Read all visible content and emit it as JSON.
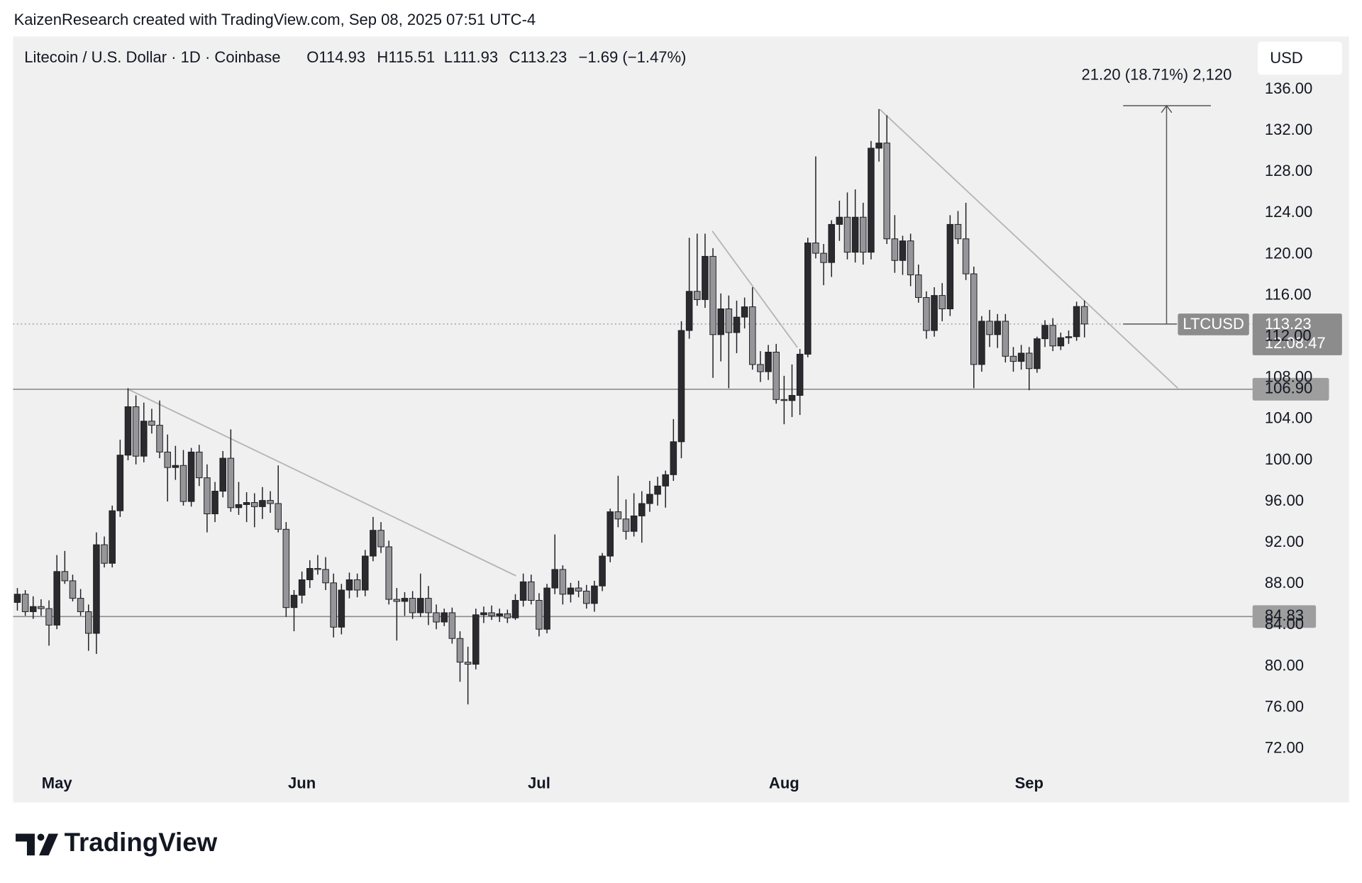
{
  "chart_data": {
    "type": "candlestick",
    "credit": "KaizenResearch created with TradingView.com, Sep 08, 2025 07:51 UTC-4",
    "title": "Litecoin / U.S. Dollar · 1D · Coinbase",
    "ohlc_labels": [
      "O114.93",
      "H115.51",
      "L111.93",
      "C113.23",
      "−1.69 (−1.47%)"
    ],
    "currency": "USD",
    "symbol_label": "LTCUSD",
    "countdown": "12:08:47",
    "up_color": "#2b2b2f",
    "down_color": "#96969a",
    "categories": [
      null,
      null,
      null,
      null,
      null,
      "May",
      null,
      null,
      null,
      null,
      null,
      null,
      null,
      null,
      null,
      null,
      null,
      null,
      null,
      null,
      null,
      null,
      null,
      null,
      null,
      null,
      null,
      null,
      null,
      null,
      null,
      null,
      null,
      null,
      null,
      null,
      "Jun",
      null,
      null,
      null,
      null,
      null,
      null,
      null,
      null,
      null,
      null,
      null,
      null,
      null,
      null,
      null,
      null,
      null,
      null,
      null,
      null,
      null,
      null,
      null,
      null,
      null,
      null,
      null,
      null,
      null,
      "Jul",
      null,
      null,
      null,
      null,
      null,
      null,
      null,
      null,
      null,
      null,
      null,
      null,
      null,
      null,
      null,
      null,
      null,
      null,
      null,
      null,
      null,
      null,
      null,
      null,
      null,
      null,
      null,
      null,
      null,
      null,
      "Aug",
      null,
      null,
      null,
      null,
      null,
      null,
      null,
      null,
      null,
      null,
      null,
      null,
      null,
      null,
      null,
      null,
      null,
      null,
      null,
      null,
      null,
      null,
      null,
      null,
      null,
      null,
      null,
      null,
      null,
      null,
      "Sep",
      null,
      null,
      null,
      null,
      null,
      null,
      null
    ],
    "open": [
      86.2,
      87.0,
      85.3,
      85.8,
      85.6,
      84.0,
      89.2,
      88.3,
      86.6,
      85.3,
      83.2,
      91.8,
      90.0,
      95.1,
      100.5,
      105.2,
      100.4,
      103.8,
      103.4,
      100.8,
      99.3,
      99.5,
      96.0,
      100.8,
      98.3,
      94.8,
      97.0,
      100.2,
      95.4,
      95.7,
      95.9,
      95.5,
      96.1,
      95.8,
      93.3,
      85.7,
      86.9,
      88.4,
      89.5,
      89.4,
      88.1,
      83.8,
      87.4,
      88.4,
      87.4,
      90.7,
      93.2,
      91.6,
      86.5,
      86.3,
      86.6,
      85.2,
      86.6,
      85.2,
      84.3,
      85.2,
      82.7,
      80.4,
      80.2,
      85.0,
      85.2,
      84.9,
      85.1,
      84.7,
      86.4,
      88.2,
      86.4,
      83.6,
      87.6,
      89.4,
      87.0,
      87.6,
      87.3,
      86.1,
      87.8,
      90.7,
      95.0,
      94.3,
      93.1,
      94.6,
      95.8,
      96.7,
      97.5,
      98.6,
      101.8,
      112.6,
      116.4,
      115.6,
      119.8,
      112.2,
      114.7,
      112.4,
      113.9,
      114.9,
      109.3,
      108.6,
      110.5,
      105.9,
      105.8,
      106.3,
      110.3,
      121.1,
      120.1,
      119.2,
      122.9,
      123.6,
      120.2,
      123.6,
      120.2,
      130.3,
      130.8,
      121.5,
      119.4,
      121.3,
      118.0,
      115.8,
      112.6,
      116.0,
      114.7,
      122.9,
      121.5,
      118.1,
      109.3,
      113.5,
      112.2,
      113.5,
      110.1,
      109.6,
      110.4,
      108.9,
      111.8,
      113.1,
      111.1,
      111.9,
      112.0,
      114.93
    ],
    "high": [
      87.6,
      87.4,
      86.8,
      86.5,
      86.4,
      90.8,
      91.2,
      88.9,
      87.5,
      86.0,
      93.0,
      92.6,
      95.6,
      102.0,
      107.0,
      106.3,
      105.6,
      105.0,
      105.8,
      102.5,
      101.4,
      101.0,
      101.2,
      101.5,
      99.6,
      97.9,
      100.9,
      103.0,
      97.9,
      96.9,
      96.8,
      97.4,
      97.0,
      99.5,
      94.0,
      87.4,
      89.2,
      90.3,
      90.8,
      90.6,
      89.0,
      88.0,
      89.1,
      89.0,
      91.3,
      94.5,
      94.0,
      92.2,
      87.6,
      87.2,
      87.3,
      89.0,
      87.8,
      86.0,
      85.6,
      85.7,
      83.4,
      81.9,
      85.6,
      85.8,
      85.9,
      85.6,
      85.5,
      87.0,
      89.0,
      88.9,
      87.1,
      88.0,
      92.8,
      89.8,
      88.1,
      88.3,
      87.9,
      88.3,
      91.0,
      95.3,
      98.5,
      96.2,
      96.8,
      97.0,
      98.0,
      98.4,
      99.0,
      104.0,
      113.5,
      121.6,
      122.0,
      122.0,
      120.6,
      116.2,
      116.0,
      115.5,
      115.8,
      116.8,
      110.6,
      111.2,
      111.3,
      108.2,
      109.3,
      110.8,
      121.6,
      129.5,
      121.0,
      123.3,
      125.2,
      126.0,
      126.3,
      125.0,
      131.0,
      134.1,
      133.5,
      123.8,
      121.8,
      122.0,
      119.0,
      116.4,
      116.8,
      117.2,
      123.8,
      124.2,
      125.0,
      118.8,
      114.0,
      114.6,
      114.2,
      114.2,
      111.0,
      111.2,
      111.0,
      112.0,
      113.6,
      113.8,
      112.4,
      112.6,
      115.4,
      115.51
    ],
    "low": [
      85.4,
      84.9,
      84.6,
      84.9,
      82.0,
      83.6,
      88.0,
      86.3,
      84.9,
      81.5,
      81.2,
      89.6,
      89.6,
      94.5,
      100.0,
      99.6,
      99.8,
      102.6,
      100.2,
      96.0,
      98.1,
      95.6,
      95.5,
      97.5,
      93.0,
      94.0,
      96.4,
      95.0,
      94.7,
      94.0,
      93.5,
      94.3,
      94.9,
      93.0,
      84.8,
      83.4,
      86.1,
      87.6,
      88.9,
      87.4,
      82.8,
      83.1,
      86.6,
      86.7,
      86.8,
      90.2,
      91.0,
      86.0,
      82.5,
      84.9,
      84.6,
      84.8,
      84.0,
      83.6,
      83.9,
      82.2,
      78.5,
      76.3,
      79.7,
      84.2,
      84.5,
      84.3,
      84.2,
      84.5,
      85.8,
      86.0,
      82.9,
      83.2,
      87.0,
      86.0,
      86.2,
      86.7,
      85.6,
      85.3,
      87.3,
      90.1,
      93.5,
      92.3,
      92.6,
      92.0,
      95.0,
      95.6,
      95.4,
      98.0,
      100.2,
      111.8,
      115.0,
      114.8,
      108.0,
      109.6,
      107.0,
      110.4,
      112.8,
      108.8,
      107.6,
      107.8,
      105.5,
      103.5,
      104.2,
      104.4,
      110.0,
      119.6,
      117.0,
      117.8,
      121.3,
      119.5,
      119.2,
      119.0,
      119.5,
      129.0,
      121.0,
      118.2,
      118.0,
      116.9,
      115.3,
      111.8,
      112.0,
      113.5,
      114.0,
      121.0,
      117.5,
      107.0,
      108.6,
      111.0,
      110.9,
      109.5,
      108.6,
      108.8,
      106.8,
      108.5,
      111.0,
      110.6,
      110.7,
      111.3,
      111.6,
      111.93
    ],
    "close": [
      87.0,
      85.3,
      85.8,
      85.6,
      84.0,
      89.2,
      88.3,
      86.6,
      85.3,
      83.2,
      91.8,
      90.0,
      95.1,
      100.5,
      105.2,
      100.4,
      103.8,
      103.4,
      100.8,
      99.3,
      99.5,
      96.0,
      100.8,
      98.3,
      94.8,
      97.0,
      100.2,
      95.4,
      95.7,
      95.9,
      95.5,
      96.1,
      95.8,
      93.3,
      85.7,
      86.9,
      88.4,
      89.5,
      89.4,
      88.1,
      83.8,
      87.4,
      88.4,
      87.4,
      90.7,
      93.2,
      91.6,
      86.5,
      86.3,
      86.6,
      85.2,
      86.6,
      85.2,
      84.3,
      85.2,
      82.7,
      80.4,
      80.2,
      85.0,
      85.2,
      84.9,
      85.1,
      84.7,
      86.4,
      88.2,
      86.4,
      83.6,
      87.6,
      89.4,
      87.0,
      87.6,
      87.3,
      86.1,
      87.8,
      90.7,
      95.0,
      94.3,
      93.1,
      94.6,
      95.8,
      96.7,
      97.5,
      98.6,
      101.8,
      112.6,
      116.4,
      115.6,
      119.8,
      112.2,
      114.7,
      112.4,
      113.9,
      114.9,
      109.3,
      108.6,
      110.5,
      105.9,
      105.8,
      106.3,
      110.3,
      121.1,
      120.1,
      119.2,
      122.9,
      123.6,
      120.2,
      123.6,
      120.2,
      130.3,
      130.8,
      121.5,
      119.4,
      121.3,
      118.0,
      115.8,
      112.6,
      116.0,
      114.7,
      122.9,
      121.5,
      118.1,
      109.3,
      113.5,
      112.2,
      113.5,
      110.1,
      109.6,
      110.4,
      108.9,
      111.8,
      113.1,
      111.1,
      111.9,
      112.0,
      114.93,
      113.23
    ],
    "ylim": [
      70,
      141
    ],
    "yticks": [
      {
        "value": 72,
        "label": "72.00"
      },
      {
        "value": 76,
        "label": "76.00"
      },
      {
        "value": 80,
        "label": "80.00"
      },
      {
        "value": 84,
        "label": "84.00"
      },
      {
        "value": 88,
        "label": "88.00"
      },
      {
        "value": 92,
        "label": "92.00"
      },
      {
        "value": 96,
        "label": "96.00"
      },
      {
        "value": 100,
        "label": "100.00"
      },
      {
        "value": 104,
        "label": "104.00"
      },
      {
        "value": 108,
        "label": "108.00"
      },
      {
        "value": 112,
        "label": "112.00"
      },
      {
        "value": 116,
        "label": "116.00"
      },
      {
        "value": 120,
        "label": "120.00"
      },
      {
        "value": 124,
        "label": "124.00"
      },
      {
        "value": 128,
        "label": "128.00"
      },
      {
        "value": 132,
        "label": "132.00"
      },
      {
        "value": 136,
        "label": "136.00"
      }
    ],
    "levels": [
      {
        "value": 106.9,
        "label": "106.90"
      },
      {
        "value": 84.83,
        "label": "84.83"
      }
    ],
    "last_price": {
      "value": 113.23,
      "label": "113.23"
    },
    "measure": {
      "label": "21.20 (18.71%) 2,120",
      "from": 113.23,
      "to": 134.43
    }
  },
  "brand": "TradingView"
}
